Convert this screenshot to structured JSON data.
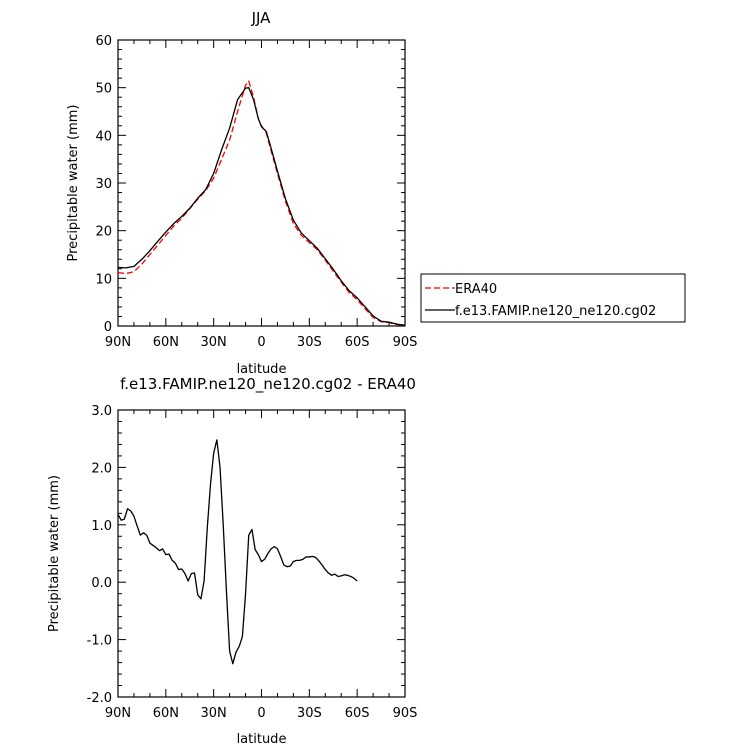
{
  "chart_data": [
    {
      "type": "line",
      "title": "JJA",
      "xlabel": "latitude",
      "ylabel": "Precipitable water (mm)",
      "xlim": [
        90,
        -90
      ],
      "ylim": [
        0,
        60
      ],
      "x_ticks": [
        {
          "value": 90,
          "label": "90N"
        },
        {
          "value": 60,
          "label": "60N"
        },
        {
          "value": 30,
          "label": "30N"
        },
        {
          "value": 0,
          "label": "0"
        },
        {
          "value": -30,
          "label": "30S"
        },
        {
          "value": -60,
          "label": "60S"
        },
        {
          "value": -90,
          "label": "90S"
        }
      ],
      "y_ticks": [
        {
          "value": 0,
          "label": "0"
        },
        {
          "value": 10,
          "label": "10"
        },
        {
          "value": 20,
          "label": "20"
        },
        {
          "value": 30,
          "label": "30"
        },
        {
          "value": 40,
          "label": "40"
        },
        {
          "value": 50,
          "label": "50"
        },
        {
          "value": 60,
          "label": "60"
        }
      ],
      "grid": false,
      "legend_position": "right",
      "series": [
        {
          "name": "ERA40",
          "color": "#ff0000",
          "dash": "dashed",
          "points": [
            [
              90,
              11.2
            ],
            [
              85,
              11.0
            ],
            [
              80,
              11.4
            ],
            [
              75,
              13.0
            ],
            [
              70,
              15.0
            ],
            [
              65,
              17.0
            ],
            [
              60,
              19.0
            ],
            [
              55,
              21.0
            ],
            [
              50,
              22.6
            ],
            [
              45,
              24.6
            ],
            [
              40,
              26.6
            ],
            [
              35,
              28.4
            ],
            [
              30,
              31.0
            ],
            [
              25,
              35.0
            ],
            [
              20,
              39.0
            ],
            [
              15,
              45.0
            ],
            [
              10,
              50.5
            ],
            [
              8,
              51.4
            ],
            [
              5,
              48.0
            ],
            [
              2,
              43.5
            ],
            [
              0,
              42.0
            ],
            [
              -3,
              40.5
            ],
            [
              -5,
              38.0
            ],
            [
              -10,
              32.0
            ],
            [
              -15,
              26.2
            ],
            [
              -20,
              21.5
            ],
            [
              -25,
              19.0
            ],
            [
              -30,
              17.5
            ],
            [
              -35,
              16.0
            ],
            [
              -40,
              13.8
            ],
            [
              -45,
              11.5
            ],
            [
              -50,
              9.2
            ],
            [
              -55,
              7.0
            ],
            [
              -60,
              5.5
            ],
            [
              -65,
              3.6
            ],
            [
              -70,
              1.8
            ],
            [
              -75,
              0.9
            ],
            [
              -80,
              0.7
            ],
            [
              -85,
              0.3
            ],
            [
              -90,
              0.1
            ]
          ]
        },
        {
          "name": "f.e13.FAMIP.ne120_ne120.cg02",
          "color": "#000000",
          "dash": "solid",
          "points": [
            [
              90,
              12.3
            ],
            [
              85,
              12.2
            ],
            [
              80,
              12.5
            ],
            [
              75,
              14.0
            ],
            [
              70,
              15.8
            ],
            [
              65,
              17.8
            ],
            [
              60,
              19.7
            ],
            [
              55,
              21.5
            ],
            [
              50,
              23.0
            ],
            [
              45,
              24.7
            ],
            [
              40,
              26.8
            ],
            [
              35,
              28.6
            ],
            [
              30,
              32.0
            ],
            [
              25,
              37.0
            ],
            [
              20,
              41.5
            ],
            [
              15,
              47.5
            ],
            [
              10,
              49.9
            ],
            [
              8,
              50.0
            ],
            [
              5,
              47.5
            ],
            [
              2,
              43.5
            ],
            [
              0,
              41.8
            ],
            [
              -3,
              40.8
            ],
            [
              -5,
              38.5
            ],
            [
              -10,
              32.5
            ],
            [
              -15,
              26.7
            ],
            [
              -20,
              22.2
            ],
            [
              -25,
              19.5
            ],
            [
              -30,
              17.9
            ],
            [
              -35,
              16.3
            ],
            [
              -40,
              14.1
            ],
            [
              -45,
              11.9
            ],
            [
              -50,
              9.5
            ],
            [
              -55,
              7.4
            ],
            [
              -60,
              5.9
            ],
            [
              -65,
              4.0
            ],
            [
              -70,
              2.1
            ],
            [
              -75,
              1.0
            ],
            [
              -80,
              0.8
            ],
            [
              -85,
              0.4
            ],
            [
              -90,
              0.15
            ]
          ]
        }
      ]
    },
    {
      "type": "line",
      "title": "f.e13.FAMIP.ne120_ne120.cg02 - ERA40",
      "xlabel": "latitude",
      "ylabel": "Precipitable water (mm)",
      "xlim": [
        90,
        -90
      ],
      "ylim": [
        -2.0,
        3.0
      ],
      "x_ticks": [
        {
          "value": 90,
          "label": "90N"
        },
        {
          "value": 60,
          "label": "60N"
        },
        {
          "value": 30,
          "label": "30N"
        },
        {
          "value": 0,
          "label": "0"
        },
        {
          "value": -30,
          "label": "30S"
        },
        {
          "value": -60,
          "label": "60S"
        },
        {
          "value": -90,
          "label": "90S"
        }
      ],
      "y_ticks": [
        {
          "value": -2.0,
          "label": "-2.0"
        },
        {
          "value": -1.0,
          "label": "-1.0"
        },
        {
          "value": 0.0,
          "label": "0.0"
        },
        {
          "value": 1.0,
          "label": "1.0"
        },
        {
          "value": 2.0,
          "label": "2.0"
        },
        {
          "value": 3.0,
          "label": "3.0"
        }
      ],
      "grid": false,
      "series": [
        {
          "color": "#000000",
          "dash": "solid",
          "points": [
            [
              90,
              1.18
            ],
            [
              88,
              1.08
            ],
            [
              86,
              1.1
            ],
            [
              84,
              1.28
            ],
            [
              82,
              1.24
            ],
            [
              80,
              1.15
            ],
            [
              78,
              0.98
            ],
            [
              76,
              0.82
            ],
            [
              74,
              0.86
            ],
            [
              72,
              0.82
            ],
            [
              70,
              0.68
            ],
            [
              68,
              0.64
            ],
            [
              66,
              0.6
            ],
            [
              64,
              0.55
            ],
            [
              62,
              0.58
            ],
            [
              60,
              0.48
            ],
            [
              58,
              0.49
            ],
            [
              56,
              0.38
            ],
            [
              54,
              0.33
            ],
            [
              52,
              0.22
            ],
            [
              50,
              0.23
            ],
            [
              48,
              0.15
            ],
            [
              46,
              0.02
            ],
            [
              44,
              0.15
            ],
            [
              42,
              0.16
            ],
            [
              40,
              -0.22
            ],
            [
              38,
              -0.29
            ],
            [
              36,
              0.02
            ],
            [
              34,
              0.95
            ],
            [
              32,
              1.7
            ],
            [
              30,
              2.25
            ],
            [
              28,
              2.48
            ],
            [
              26,
              2.0
            ],
            [
              24,
              1.0
            ],
            [
              22,
              -0.15
            ],
            [
              20,
              -1.2
            ],
            [
              18,
              -1.42
            ],
            [
              16,
              -1.22
            ],
            [
              14,
              -1.12
            ],
            [
              12,
              -0.95
            ],
            [
              10,
              -0.2
            ],
            [
              8,
              0.82
            ],
            [
              6,
              0.92
            ],
            [
              4,
              0.57
            ],
            [
              2,
              0.48
            ],
            [
              0,
              0.36
            ],
            [
              -2,
              0.4
            ],
            [
              -4,
              0.5
            ],
            [
              -6,
              0.58
            ],
            [
              -8,
              0.62
            ],
            [
              -10,
              0.58
            ],
            [
              -12,
              0.45
            ],
            [
              -14,
              0.3
            ],
            [
              -16,
              0.27
            ],
            [
              -18,
              0.28
            ],
            [
              -20,
              0.36
            ],
            [
              -22,
              0.38
            ],
            [
              -24,
              0.38
            ],
            [
              -26,
              0.4
            ],
            [
              -28,
              0.44
            ],
            [
              -30,
              0.44
            ],
            [
              -32,
              0.45
            ],
            [
              -34,
              0.43
            ],
            [
              -36,
              0.37
            ],
            [
              -38,
              0.3
            ],
            [
              -40,
              0.22
            ],
            [
              -42,
              0.16
            ],
            [
              -44,
              0.12
            ],
            [
              -46,
              0.14
            ],
            [
              -48,
              0.1
            ],
            [
              -50,
              0.11
            ],
            [
              -52,
              0.13
            ],
            [
              -54,
              0.12
            ],
            [
              -56,
              0.1
            ],
            [
              -58,
              0.07
            ],
            [
              -60,
              0.02
            ]
          ]
        }
      ]
    }
  ]
}
